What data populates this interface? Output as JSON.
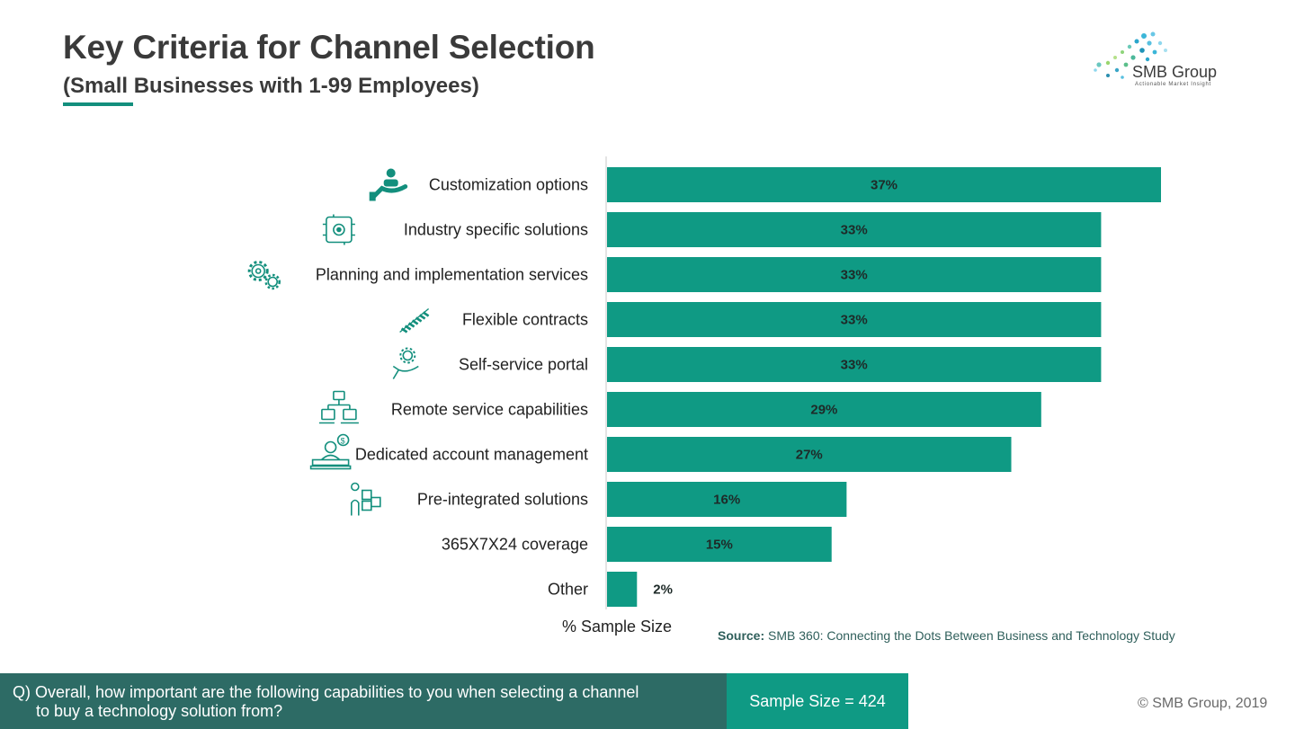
{
  "header": {
    "title": "Key Criteria for Channel Selection",
    "subtitle": "(Small Businesses with 1-99 Employees)"
  },
  "logo": {
    "name": "SMB Group",
    "tagline": "Actionable Market Insight"
  },
  "axis_caption": "% Sample Size",
  "source": {
    "label": "Source:",
    "text": "SMB 360: Connecting the Dots Between Business and Technology Study"
  },
  "footer": {
    "question_line1": "Q) Overall, how important are the following capabilities to you when selecting a channel",
    "question_line2": "to buy a technology solution from?",
    "sample_size": "Sample Size = 424",
    "copyright": "© SMB Group, 2019"
  },
  "colors": {
    "bar": "#0f9a84",
    "accent": "#138f7d",
    "question_bg": "#2d6b65",
    "icon": "#138f7d"
  },
  "chart_data": {
    "type": "bar",
    "orientation": "horizontal",
    "categories": [
      "Customization options",
      "Industry specific solutions",
      "Planning and implementation services",
      "Flexible contracts",
      "Self-service portal",
      "Remote service capabilities",
      "Dedicated account management",
      "Pre-integrated solutions",
      "365X7X24 coverage",
      "Other"
    ],
    "values": [
      37,
      33,
      33,
      33,
      33,
      29,
      27,
      16,
      15,
      2
    ],
    "value_labels": [
      "37%",
      "33%",
      "33%",
      "33%",
      "33%",
      "29%",
      "27%",
      "16%",
      "15%",
      "2%"
    ],
    "icons": [
      "hand-person-icon",
      "circuit-gear-icon",
      "gears-icon",
      "contract-rope-icon",
      "hand-gear-icon",
      "network-computers-icon",
      "account-manager-icon",
      "puzzle-person-icon",
      "",
      ""
    ],
    "xlim": [
      0,
      37
    ],
    "grid": false,
    "legend": "none"
  }
}
